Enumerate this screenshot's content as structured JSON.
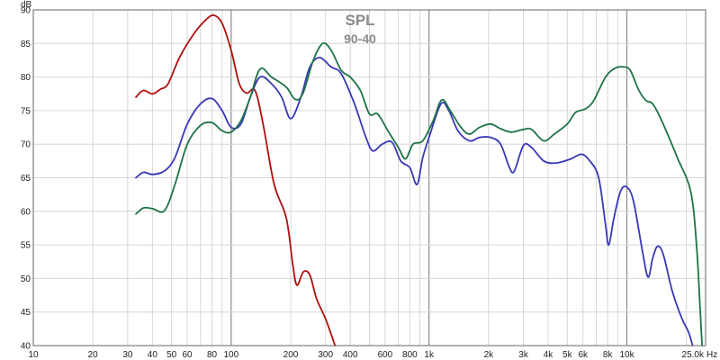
{
  "chart_data": {
    "type": "line",
    "title": "SPL",
    "subtitle": "90-40",
    "xlabel": "Hz",
    "ylabel": "dB",
    "x_scale": "log",
    "xlim": [
      10,
      25000
    ],
    "ylim": [
      40,
      90
    ],
    "grid": true,
    "x_major_ticks": [
      10,
      100,
      1000,
      10000
    ],
    "x_tick_labels": [
      {
        "value": 10,
        "label": "10"
      },
      {
        "value": 20,
        "label": "20"
      },
      {
        "value": 30,
        "label": "30"
      },
      {
        "value": 40,
        "label": "40"
      },
      {
        "value": 50,
        "label": "50"
      },
      {
        "value": 60,
        "label": "60"
      },
      {
        "value": 80,
        "label": "80"
      },
      {
        "value": 100,
        "label": "100"
      },
      {
        "value": 200,
        "label": "200"
      },
      {
        "value": 300,
        "label": "300"
      },
      {
        "value": 400,
        "label": "400"
      },
      {
        "value": 600,
        "label": "600"
      },
      {
        "value": 800,
        "label": "800"
      },
      {
        "value": 1000,
        "label": "1k"
      },
      {
        "value": 2000,
        "label": "2k"
      },
      {
        "value": 3000,
        "label": "3k"
      },
      {
        "value": 4000,
        "label": "4k"
      },
      {
        "value": 5000,
        "label": "5k"
      },
      {
        "value": 6000,
        "label": "6k"
      },
      {
        "value": 8000,
        "label": "8k"
      },
      {
        "value": 10000,
        "label": "10k"
      },
      {
        "value": 25000,
        "label": "25.0k"
      }
    ],
    "y_tick_labels": [
      "40",
      "45",
      "50",
      "55",
      "60",
      "65",
      "70",
      "75",
      "80",
      "85",
      "90"
    ],
    "series": [
      {
        "color": "#b01010",
        "points": [
          [
            33,
            77
          ],
          [
            36,
            78
          ],
          [
            40,
            77.5
          ],
          [
            44,
            78.2
          ],
          [
            48,
            79
          ],
          [
            55,
            83
          ],
          [
            65,
            86.5
          ],
          [
            75,
            88.6
          ],
          [
            82,
            89.2
          ],
          [
            90,
            88
          ],
          [
            100,
            84
          ],
          [
            110,
            79
          ],
          [
            120,
            77.6
          ],
          [
            132,
            78
          ],
          [
            145,
            73
          ],
          [
            165,
            64
          ],
          [
            190,
            59
          ],
          [
            205,
            52
          ],
          [
            215,
            49
          ],
          [
            232,
            51
          ],
          [
            250,
            50.5
          ],
          [
            270,
            47
          ],
          [
            300,
            44
          ],
          [
            335,
            40
          ]
        ]
      },
      {
        "color": "#3838b8",
        "points": [
          [
            33,
            65
          ],
          [
            36,
            65.8
          ],
          [
            40,
            65.5
          ],
          [
            46,
            66
          ],
          [
            52,
            68
          ],
          [
            60,
            73
          ],
          [
            70,
            76
          ],
          [
            80,
            76.8
          ],
          [
            90,
            75
          ],
          [
            100,
            72.5
          ],
          [
            112,
            73
          ],
          [
            125,
            77
          ],
          [
            140,
            80
          ],
          [
            160,
            79
          ],
          [
            180,
            77
          ],
          [
            200,
            73.8
          ],
          [
            225,
            77
          ],
          [
            250,
            81.5
          ],
          [
            280,
            82.9
          ],
          [
            320,
            81.5
          ],
          [
            360,
            80.5
          ],
          [
            420,
            76
          ],
          [
            480,
            71
          ],
          [
            520,
            69
          ],
          [
            580,
            70
          ],
          [
            650,
            70.3
          ],
          [
            720,
            67.5
          ],
          [
            800,
            66.5
          ],
          [
            870,
            64
          ],
          [
            930,
            68
          ],
          [
            1000,
            71
          ],
          [
            1150,
            76
          ],
          [
            1260,
            75
          ],
          [
            1400,
            72
          ],
          [
            1600,
            70.5
          ],
          [
            1800,
            71
          ],
          [
            2050,
            71
          ],
          [
            2300,
            70
          ],
          [
            2550,
            66.5
          ],
          [
            2700,
            66
          ],
          [
            3000,
            69.8
          ],
          [
            3300,
            69.5
          ],
          [
            3800,
            67.5
          ],
          [
            4400,
            67.2
          ],
          [
            5200,
            67.8
          ],
          [
            5900,
            68.5
          ],
          [
            6500,
            67.5
          ],
          [
            7200,
            65
          ],
          [
            7800,
            58
          ],
          [
            8100,
            55
          ],
          [
            8600,
            59
          ],
          [
            9300,
            63
          ],
          [
            10000,
            63.6
          ],
          [
            10800,
            61.5
          ],
          [
            12000,
            54
          ],
          [
            12800,
            50.2
          ],
          [
            13500,
            53
          ],
          [
            14300,
            54.8
          ],
          [
            15300,
            53.5
          ],
          [
            17000,
            48
          ],
          [
            19000,
            44
          ],
          [
            20500,
            42
          ],
          [
            21500,
            40
          ]
        ]
      },
      {
        "color": "#1e7346",
        "points": [
          [
            33,
            59.6
          ],
          [
            36,
            60.5
          ],
          [
            40,
            60.4
          ],
          [
            46,
            60.1
          ],
          [
            52,
            64
          ],
          [
            60,
            70
          ],
          [
            70,
            72.8
          ],
          [
            80,
            73.2
          ],
          [
            90,
            72
          ],
          [
            100,
            71.8
          ],
          [
            112,
            73.5
          ],
          [
            125,
            77
          ],
          [
            140,
            81.2
          ],
          [
            160,
            80
          ],
          [
            190,
            78.5
          ],
          [
            210,
            76.7
          ],
          [
            230,
            77.5
          ],
          [
            260,
            82.5
          ],
          [
            290,
            85
          ],
          [
            320,
            84
          ],
          [
            360,
            81
          ],
          [
            400,
            80
          ],
          [
            450,
            78
          ],
          [
            500,
            74.5
          ],
          [
            550,
            74.5
          ],
          [
            620,
            72
          ],
          [
            700,
            69.5
          ],
          [
            760,
            67.8
          ],
          [
            830,
            70
          ],
          [
            930,
            70.5
          ],
          [
            1050,
            73.5
          ],
          [
            1160,
            76.6
          ],
          [
            1280,
            75
          ],
          [
            1450,
            72.5
          ],
          [
            1600,
            71.5
          ],
          [
            1800,
            72.5
          ],
          [
            2050,
            73
          ],
          [
            2300,
            72.3
          ],
          [
            2600,
            71.8
          ],
          [
            3000,
            72.2
          ],
          [
            3300,
            72.2
          ],
          [
            3800,
            70.5
          ],
          [
            4300,
            71.5
          ],
          [
            5000,
            73
          ],
          [
            5500,
            74.7
          ],
          [
            6200,
            75.3
          ],
          [
            6800,
            76.5
          ],
          [
            7800,
            80
          ],
          [
            8700,
            81.3
          ],
          [
            9600,
            81.5
          ],
          [
            10400,
            81
          ],
          [
            11500,
            78
          ],
          [
            12500,
            76.5
          ],
          [
            13500,
            76
          ],
          [
            15000,
            73.5
          ],
          [
            18000,
            68
          ],
          [
            21000,
            63
          ],
          [
            22500,
            55
          ],
          [
            23500,
            45
          ],
          [
            24000,
            40
          ]
        ]
      }
    ]
  }
}
